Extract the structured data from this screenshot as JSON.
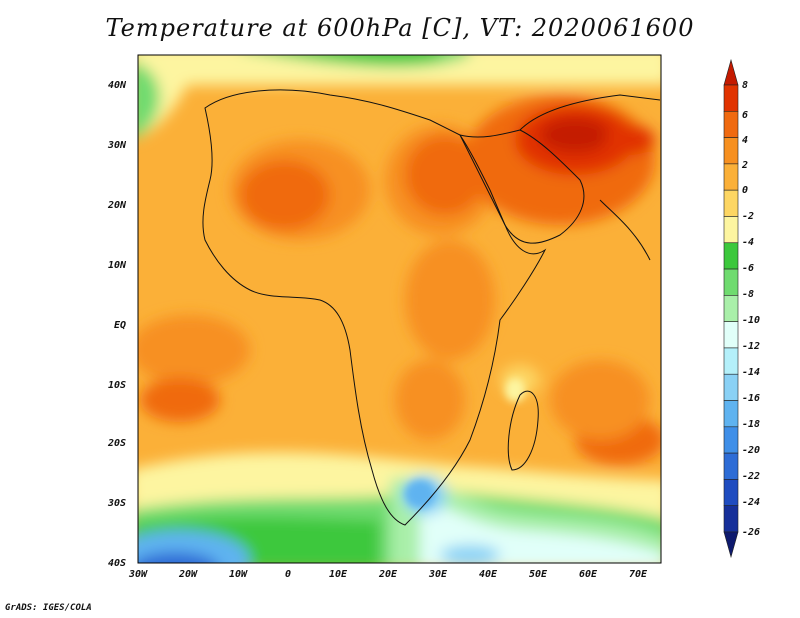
{
  "title": "Temperature at 600hPa [C], VT: 2020061600",
  "credit": "GrADS: IGES/COLA",
  "map": {
    "region": "Africa and Arabian Peninsula",
    "lon_range": [
      -30,
      75
    ],
    "lat_range": [
      -40,
      45
    ],
    "lat_labels": [
      "40N",
      "30N",
      "20N",
      "10N",
      "EQ",
      "10S",
      "20S",
      "30S",
      "40S"
    ],
    "lon_labels": [
      "30W",
      "20W",
      "10W",
      "0",
      "10E",
      "20E",
      "30E",
      "40E",
      "50E",
      "60E",
      "70E"
    ]
  },
  "colorbar": {
    "labels": [
      "8",
      "6",
      "4",
      "2",
      "0",
      "-2",
      "-4",
      "-6",
      "-8",
      "-10",
      "-12",
      "-14",
      "-16",
      "-18",
      "-20",
      "-22",
      "-24",
      "-26"
    ],
    "colors": [
      "#c41a00",
      "#e13300",
      "#f06a10",
      "#f79020",
      "#fbb038",
      "#fdd663",
      "#fdf5a0",
      "#3cc83c",
      "#6fdb6f",
      "#a9efa9",
      "#e1fff9",
      "#b4f0fa",
      "#8ad1f5",
      "#5fb3f0",
      "#3f8fe8",
      "#2d6cd6",
      "#1f4cc0",
      "#16309a",
      "#0e1a6e"
    ]
  }
}
